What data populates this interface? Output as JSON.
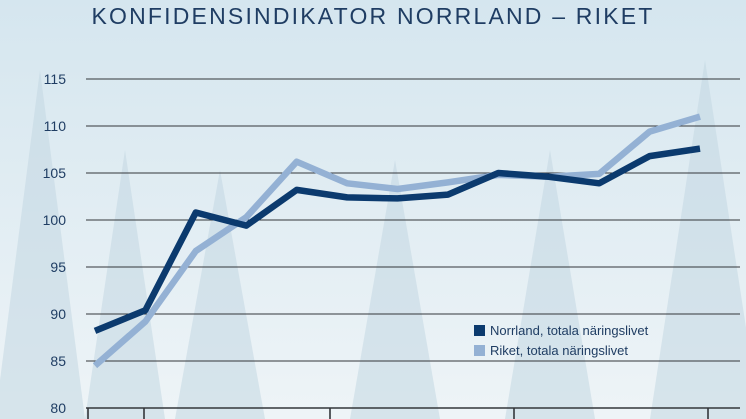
{
  "colors": {
    "background_top": "#d5e6ef",
    "background_bottom": "#eef4f7",
    "text": "#1f3d63",
    "norrland": "#0b3a6e",
    "riket": "#94b1d4",
    "gridline": "#33363a"
  },
  "chart_data": {
    "type": "line",
    "title": "KONFIDENSINDIKATOR NORRLAND – RIKET",
    "xlabel": "",
    "ylabel": "",
    "ylim": [
      80,
      115
    ],
    "yticks": [
      80,
      85,
      90,
      95,
      100,
      105,
      110,
      115
    ],
    "ytick_labels": [
      "80",
      "85",
      "90",
      "95",
      "100",
      "105",
      "110",
      "115"
    ],
    "grid": true,
    "legend_position": "lower-right",
    "x": [
      1,
      2,
      3,
      4,
      5,
      6,
      7,
      8,
      9,
      10,
      11,
      12,
      13
    ],
    "series": [
      {
        "name": "Norrland, totala näringslivet",
        "color": "#0b3a6e",
        "values": [
          88.2,
          90.4,
          100.8,
          99.4,
          103.2,
          102.4,
          102.3,
          102.7,
          105.0,
          104.6,
          103.9,
          106.8,
          107.6
        ]
      },
      {
        "name": "Riket, totala näringslivet",
        "color": "#94b1d4",
        "values": [
          84.5,
          89.2,
          96.7,
          100.3,
          106.2,
          103.9,
          103.3,
          104.0,
          104.8,
          104.6,
          104.9,
          109.4,
          111.0
        ]
      }
    ]
  }
}
